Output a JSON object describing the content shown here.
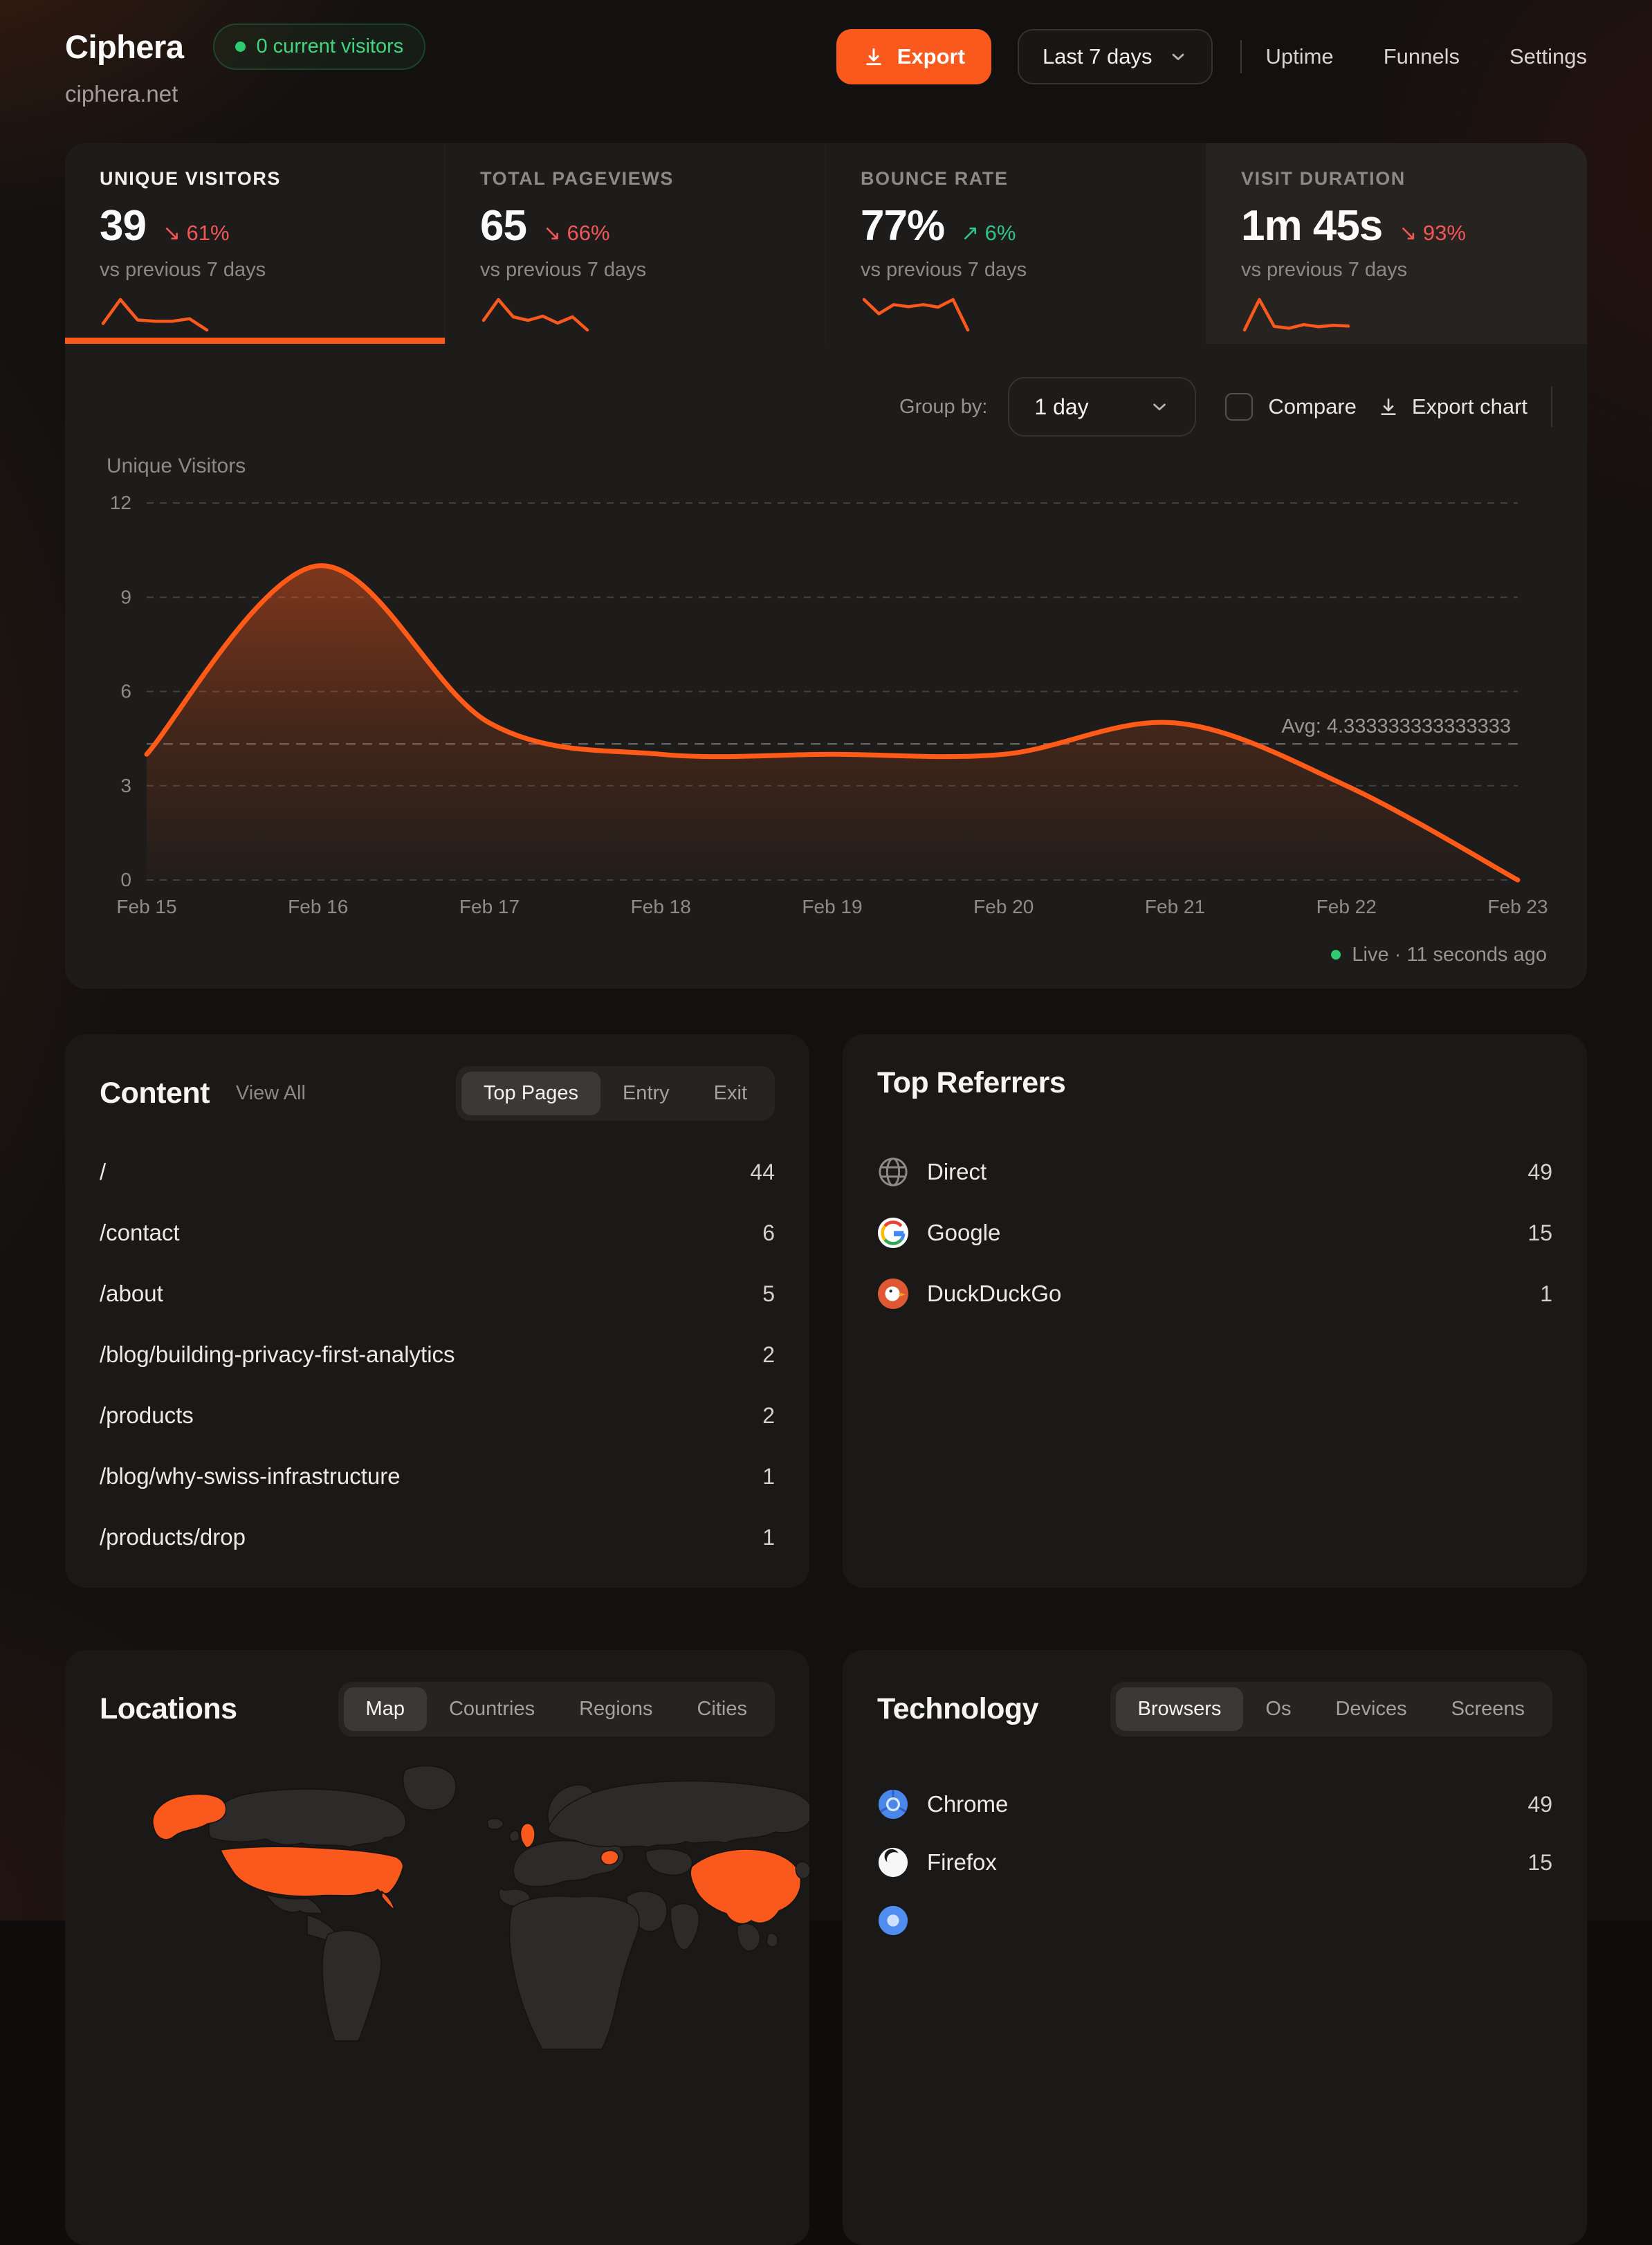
{
  "header": {
    "site_name": "Ciphera",
    "domain": "ciphera.net",
    "visitors_badge": "0 current visitors",
    "export_label": "Export",
    "date_range": "Last 7 days",
    "nav": [
      "Uptime",
      "Funnels",
      "Settings"
    ]
  },
  "stats": [
    {
      "label": "UNIQUE VISITORS",
      "value": "39",
      "change": "61%",
      "direction": "down",
      "compare": "vs previous 7 days",
      "active": true,
      "spark": [
        3.5,
        9,
        4.3,
        4.0,
        4.0,
        4.6,
        2.0
      ]
    },
    {
      "label": "TOTAL PAGEVIEWS",
      "value": "65",
      "change": "66%",
      "direction": "down",
      "compare": "vs previous 7 days",
      "active": false,
      "spark": [
        4,
        10,
        5,
        4,
        5.2,
        3.2,
        5,
        1.2
      ]
    },
    {
      "label": "BOUNCE RATE",
      "value": "77%",
      "change": "6%",
      "direction": "up",
      "compare": "vs previous 7 days",
      "active": false,
      "spark": [
        7,
        4.2,
        6,
        5.6,
        6,
        5.5,
        7,
        1
      ]
    },
    {
      "label": "VISIT DURATION",
      "value": "1m 45s",
      "change": "93%",
      "direction": "down",
      "compare": "vs previous 7 days",
      "active": false,
      "spark": [
        1.5,
        10,
        2.5,
        2,
        3,
        2.4,
        2.8,
        2.6
      ]
    }
  ],
  "chart_controls": {
    "group_by_label": "Group by:",
    "group_by_value": "1 day",
    "compare_label": "Compare",
    "export_chart_label": "Export chart"
  },
  "chart_data": {
    "type": "area",
    "title": "Unique Visitors",
    "x": [
      "Feb 15",
      "Feb 16",
      "Feb 17",
      "Feb 18",
      "Feb 19",
      "Feb 20",
      "Feb 21",
      "Feb 22",
      "Feb 23"
    ],
    "values": [
      4,
      10,
      5,
      4,
      4,
      4,
      5,
      3,
      0
    ],
    "avg": 4.333333333333333,
    "avg_label": "Avg: 4.333333333333333",
    "ylim": [
      0,
      12
    ],
    "yticks": [
      0,
      3,
      6,
      9,
      12
    ],
    "grid": "dashed-horizontal",
    "legend": "none",
    "line_color": "#ff5a17"
  },
  "live_status": {
    "label": "Live · 11 seconds ago"
  },
  "content": {
    "title": "Content",
    "view_all": "View All",
    "tabs": [
      "Top Pages",
      "Entry",
      "Exit"
    ],
    "active_tab": "Top Pages",
    "rows": [
      {
        "path": "/",
        "count": 44
      },
      {
        "path": "/contact",
        "count": 6
      },
      {
        "path": "/about",
        "count": 5
      },
      {
        "path": "/blog/building-privacy-first-analytics",
        "count": 2
      },
      {
        "path": "/products",
        "count": 2
      },
      {
        "path": "/blog/why-swiss-infrastructure",
        "count": 1
      },
      {
        "path": "/products/drop",
        "count": 1
      }
    ]
  },
  "referrers": {
    "title": "Top Referrers",
    "rows": [
      {
        "name": "Direct",
        "count": 49,
        "icon": "globe"
      },
      {
        "name": "Google",
        "count": 15,
        "icon": "google"
      },
      {
        "name": "DuckDuckGo",
        "count": 1,
        "icon": "duckduckgo"
      }
    ]
  },
  "locations": {
    "title": "Locations",
    "tabs": [
      "Map",
      "Countries",
      "Regions",
      "Cities"
    ],
    "active_tab": "Map",
    "highlighted_regions": [
      "United States",
      "Alaska",
      "United Kingdom",
      "Romania",
      "China"
    ]
  },
  "technology": {
    "title": "Technology",
    "tabs": [
      "Browsers",
      "Os",
      "Devices",
      "Screens"
    ],
    "active_tab": "Browsers",
    "rows": [
      {
        "name": "Chrome",
        "count": 49,
        "icon": "chrome"
      },
      {
        "name": "Firefox",
        "count": 15,
        "icon": "firefox"
      }
    ],
    "partial_rows": [
      {
        "icon": "unknown-browser"
      }
    ]
  },
  "colors": {
    "accent": "#f9591d",
    "negative": "#f25757",
    "positive": "#30c584",
    "map_land": "#2d2b29",
    "map_highlight": "#f9591d"
  }
}
